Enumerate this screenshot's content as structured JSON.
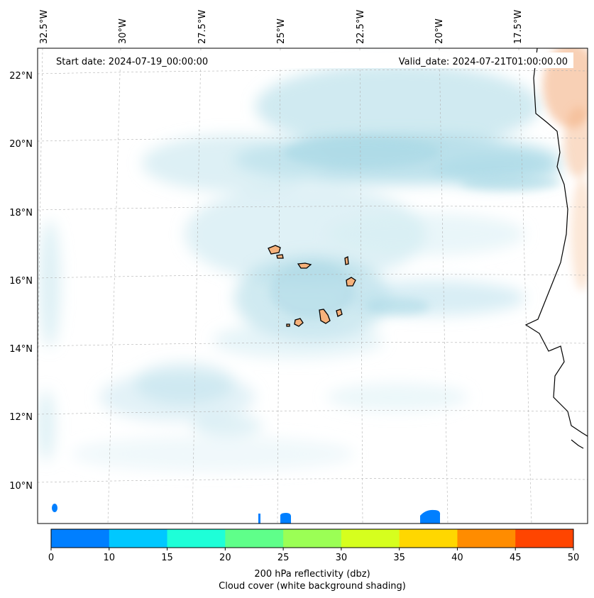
{
  "map": {
    "start_label": "Start date: 2024-07-19_00:00:00",
    "valid_label": "Valid_date: 2024-07-21T01:00:00.00",
    "lon_labels": [
      "32.5°W",
      "30°W",
      "27.5°W",
      "25°W",
      "22.5°W",
      "20°W",
      "17.5°W"
    ],
    "lat_labels": [
      "22°N",
      "20°N",
      "18°N",
      "16°N",
      "14°N",
      "12°N",
      "10°N"
    ],
    "colors": {
      "cloud": "#a9d8e6",
      "land_dust": "#f4b183",
      "island_fill": "#f6b27c",
      "grid": "#b0b0b0"
    }
  },
  "colorbar": {
    "ticks": [
      "0",
      "10",
      "15",
      "20",
      "25",
      "30",
      "35",
      "40",
      "45",
      "50"
    ],
    "colors": [
      "#007fff",
      "#00c8ff",
      "#1effd8",
      "#5fff8a",
      "#9bff55",
      "#d6ff1e",
      "#ffd700",
      "#ff8c00",
      "#ff4500"
    ],
    "label_line1": "200 hPa reflectivity (dbz)",
    "label_line2": "Cloud cover (white background shading)"
  }
}
